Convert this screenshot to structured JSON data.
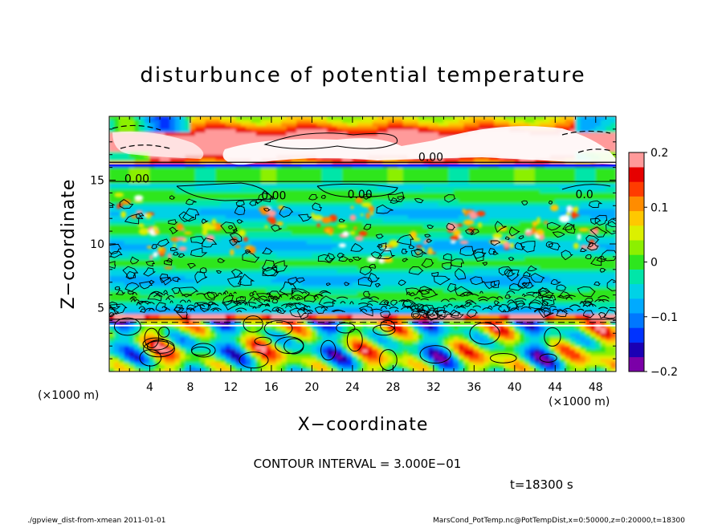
{
  "chart_data": {
    "type": "heatmap",
    "title": "disturbunce of potential temperature",
    "xlabel": "X−coordinate",
    "ylabel": "Z−coordinate",
    "x_unit_label": "(×1000 m)",
    "y_unit_label": "(×1000 m)",
    "xlim": [
      0,
      50
    ],
    "ylim": [
      0,
      20
    ],
    "x_ticks": [
      4,
      8,
      12,
      16,
      20,
      24,
      28,
      32,
      36,
      40,
      44,
      48
    ],
    "y_ticks": [
      5,
      10,
      15
    ],
    "x_tick_labels": [
      "4",
      "8",
      "12",
      "16",
      "20",
      "24",
      "28",
      "32",
      "36",
      "40",
      "44",
      "48"
    ],
    "y_tick_labels": [
      "5",
      "10",
      "15"
    ],
    "colorbar": {
      "min": -0.2,
      "max": 0.2,
      "ticks": [
        0.2,
        0.1,
        0,
        -0.1,
        -0.2
      ],
      "tick_labels": [
        "0.2",
        "0.1",
        "0",
        "−0.1",
        "−0.2"
      ],
      "colors": [
        "#7b00a8",
        "#1a00b4",
        "#0033ff",
        "#0077ff",
        "#00aaff",
        "#00d2e6",
        "#00e6a8",
        "#2ee61e",
        "#8cf000",
        "#dcf000",
        "#ffc800",
        "#ff8c00",
        "#ff3c00",
        "#e60000",
        "#ff9a9a"
      ]
    },
    "contour_labels": [
      {
        "text": "0.00",
        "x": 1.5,
        "z": 14.8
      },
      {
        "text": "0.00",
        "x": 15.0,
        "z": 13.5
      },
      {
        "text": "0.00",
        "x": 23.5,
        "z": 13.6
      },
      {
        "text": "0.00",
        "x": 30.5,
        "z": 16.5
      },
      {
        "text": "0.0",
        "x": 46.0,
        "z": 13.6
      }
    ],
    "contour_interval": "CONTOUR INTERVAL = 3.000E−01",
    "time_label": "t=18300 s"
  },
  "footer": {
    "left": "./gpview_dist-from-xmean  2011-01-01",
    "right": "MarsCond_PotTemp.nc@PotTempDist,x=0:50000,z=0:20000,t=18300"
  }
}
